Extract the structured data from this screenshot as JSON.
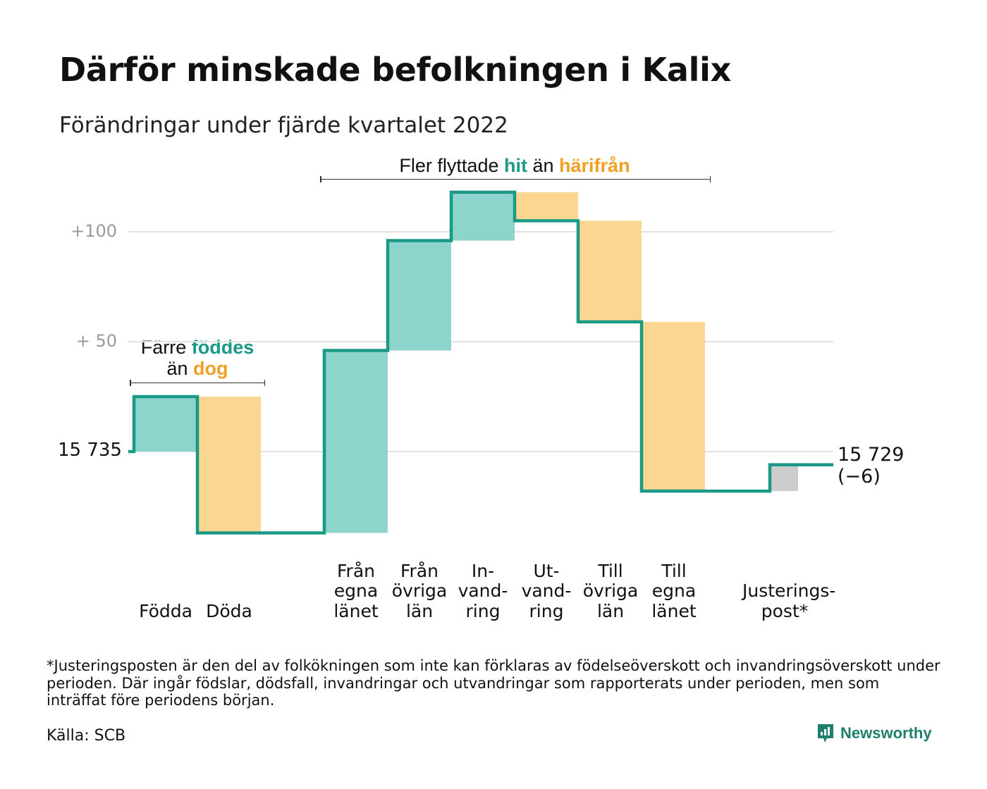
{
  "title": "Därför minskade befolkningen i Kalix",
  "subtitle": "Förändringar under fjärde kvartalet 2022",
  "annotation_births": {
    "prefix": "Färre ",
    "highlight1": "föddes",
    "middle": "än ",
    "highlight2": "dog"
  },
  "annotation_migration": {
    "prefix": "Fler flyttade ",
    "highlight1": "hit",
    "middle": " än ",
    "highlight2": "härifrån"
  },
  "footnote": "*Justeringsposten är den del av folkökningen som inte kan förklaras av födelseöverskott och invandringsöverskott under perioden. Där ingår födslar, dödsfall, invandringar och utvandringar som rapporterats under perioden, men som inträffat före periodens början.",
  "source": "Källa: SCB",
  "brand": "Newsworthy",
  "colors": {
    "positive": "#8dd5cc",
    "negative": "#fad690",
    "adjustment": "#cccccc",
    "line": "#1a9a86",
    "grid": "#e2e2e2",
    "teal_text": "#1a9a86",
    "orange_text": "#f0a023",
    "brand": "#1f7f6e"
  },
  "chart_data": {
    "type": "waterfall",
    "start": {
      "value": 15735,
      "label": "15 735"
    },
    "end": {
      "value": 15729,
      "label": "15 729",
      "change_label": "(−6)"
    },
    "y_tick_labels": [
      "+100",
      "+ 50"
    ],
    "y_ticks": [
      100,
      50
    ],
    "ylim": [
      -40,
      120
    ],
    "grid": true,
    "steps": [
      {
        "name": "Födda",
        "label_lines": [
          "Födda"
        ],
        "change": 25,
        "kind": "positive"
      },
      {
        "name": "Döda",
        "label_lines": [
          "Döda"
        ],
        "change": -62,
        "kind": "negative"
      },
      {
        "name": "Från egna länet",
        "label_lines": [
          "Från",
          "egna",
          "länet"
        ],
        "change": 83,
        "kind": "positive"
      },
      {
        "name": "Från övriga län",
        "label_lines": [
          "Från",
          "övriga",
          "län"
        ],
        "change": 50,
        "kind": "positive"
      },
      {
        "name": "Invandring",
        "label_lines": [
          "In-",
          "vand-",
          "ring"
        ],
        "change": 22,
        "kind": "positive"
      },
      {
        "name": "Utvandring",
        "label_lines": [
          "Ut-",
          "vand-",
          "ring"
        ],
        "change": -13,
        "kind": "negative"
      },
      {
        "name": "Till övriga län",
        "label_lines": [
          "Till",
          "övriga",
          "län"
        ],
        "change": -46,
        "kind": "negative"
      },
      {
        "name": "Till egna länet",
        "label_lines": [
          "Till",
          "egna",
          "länet"
        ],
        "change": -77,
        "kind": "negative"
      },
      {
        "name": "Justeringspost*",
        "label_lines": [
          "Justerings-",
          "post*"
        ],
        "change": 12,
        "kind": "adjustment"
      }
    ]
  }
}
